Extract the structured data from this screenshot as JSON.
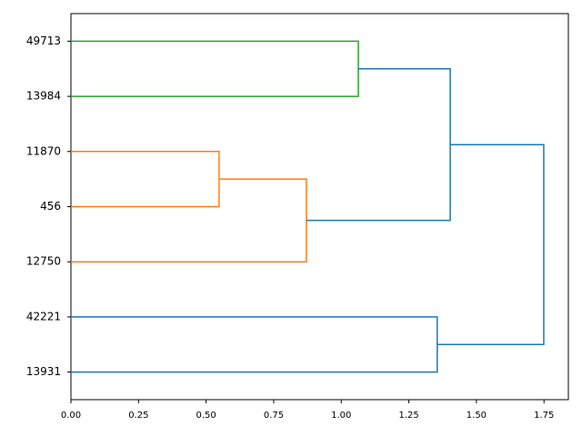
{
  "chart_data": {
    "type": "dendrogram",
    "orientation": "right",
    "xlim": [
      0,
      1.84
    ],
    "xticks": [
      {
        "value": 0,
        "label": "0.00"
      },
      {
        "value": 0.25,
        "label": "0.25"
      },
      {
        "value": 0.5,
        "label": "0.50"
      },
      {
        "value": 0.75,
        "label": "0.75"
      },
      {
        "value": 1,
        "label": "1.00"
      },
      {
        "value": 1.25,
        "label": "1.25"
      },
      {
        "value": 1.5,
        "label": "1.50"
      },
      {
        "value": 1.75,
        "label": "1.75"
      }
    ],
    "tree": {
      "height": 1.749,
      "color": "#1f77b4",
      "children": [
        {
          "height": 1.403,
          "color": "#1f77b4",
          "children": [
            {
              "height": 1.063,
              "color": "#2ca02c",
              "children": [
                {
                  "label": "49713"
                },
                {
                  "label": "13984"
                }
              ]
            },
            {
              "height": 0.871,
              "color": "#ff7f0e",
              "children": [
                {
                  "height": 0.548,
                  "color": "#ff7f0e",
                  "children": [
                    {
                      "label": "11870"
                    },
                    {
                      "label": "456"
                    }
                  ]
                },
                {
                  "label": "12750"
                }
              ]
            }
          ]
        },
        {
          "height": 1.355,
          "color": "#1f77b4",
          "children": [
            {
              "label": "42221"
            },
            {
              "label": "13931"
            }
          ]
        }
      ]
    }
  }
}
